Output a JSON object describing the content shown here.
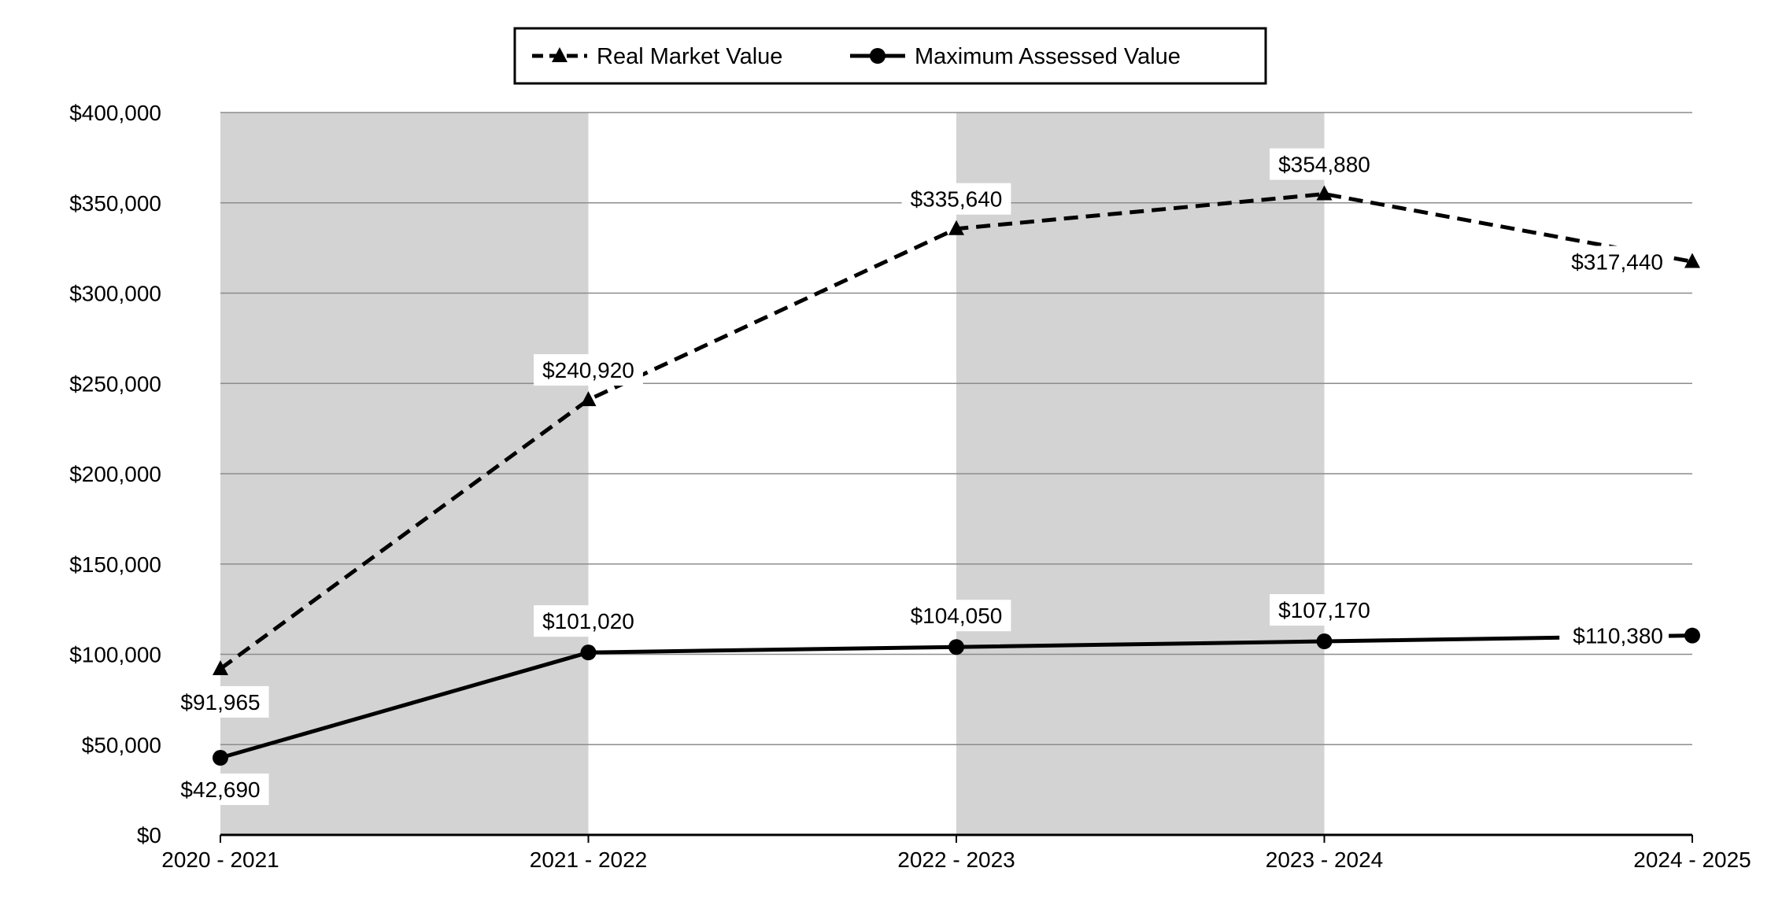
{
  "chart_data": {
    "type": "line",
    "categories": [
      "2020 - 2021",
      "2021 - 2022",
      "2022 - 2023",
      "2023 - 2024",
      "2024 - 2025"
    ],
    "series": [
      {
        "name": "Real Market Value",
        "values": [
          91965,
          240920,
          335640,
          354880,
          317440
        ],
        "labels": [
          "$91,965",
          "$240,920",
          "$335,640",
          "$354,880",
          "$317,440"
        ],
        "line_style": "dashed",
        "marker": "triangle",
        "color": "#000000"
      },
      {
        "name": "Maximum Assessed Value",
        "values": [
          42690,
          101020,
          104050,
          107170,
          110380
        ],
        "labels": [
          "$42,690",
          "$101,020",
          "$104,050",
          "$107,170",
          "$110,380"
        ],
        "line_style": "solid",
        "marker": "circle",
        "color": "#000000"
      }
    ],
    "y_ticks": [
      0,
      50000,
      100000,
      150000,
      200000,
      250000,
      300000,
      350000,
      400000
    ],
    "y_tick_labels": [
      "$0",
      "$50,000",
      "$100,000",
      "$150,000",
      "$200,000",
      "$250,000",
      "$300,000",
      "$350,000",
      "$400,000"
    ],
    "ylim": [
      0,
      400000
    ],
    "grid": true,
    "legend_position": "top-center",
    "band_color": "#d3d3d3",
    "shaded_bands": [
      0,
      2
    ]
  }
}
